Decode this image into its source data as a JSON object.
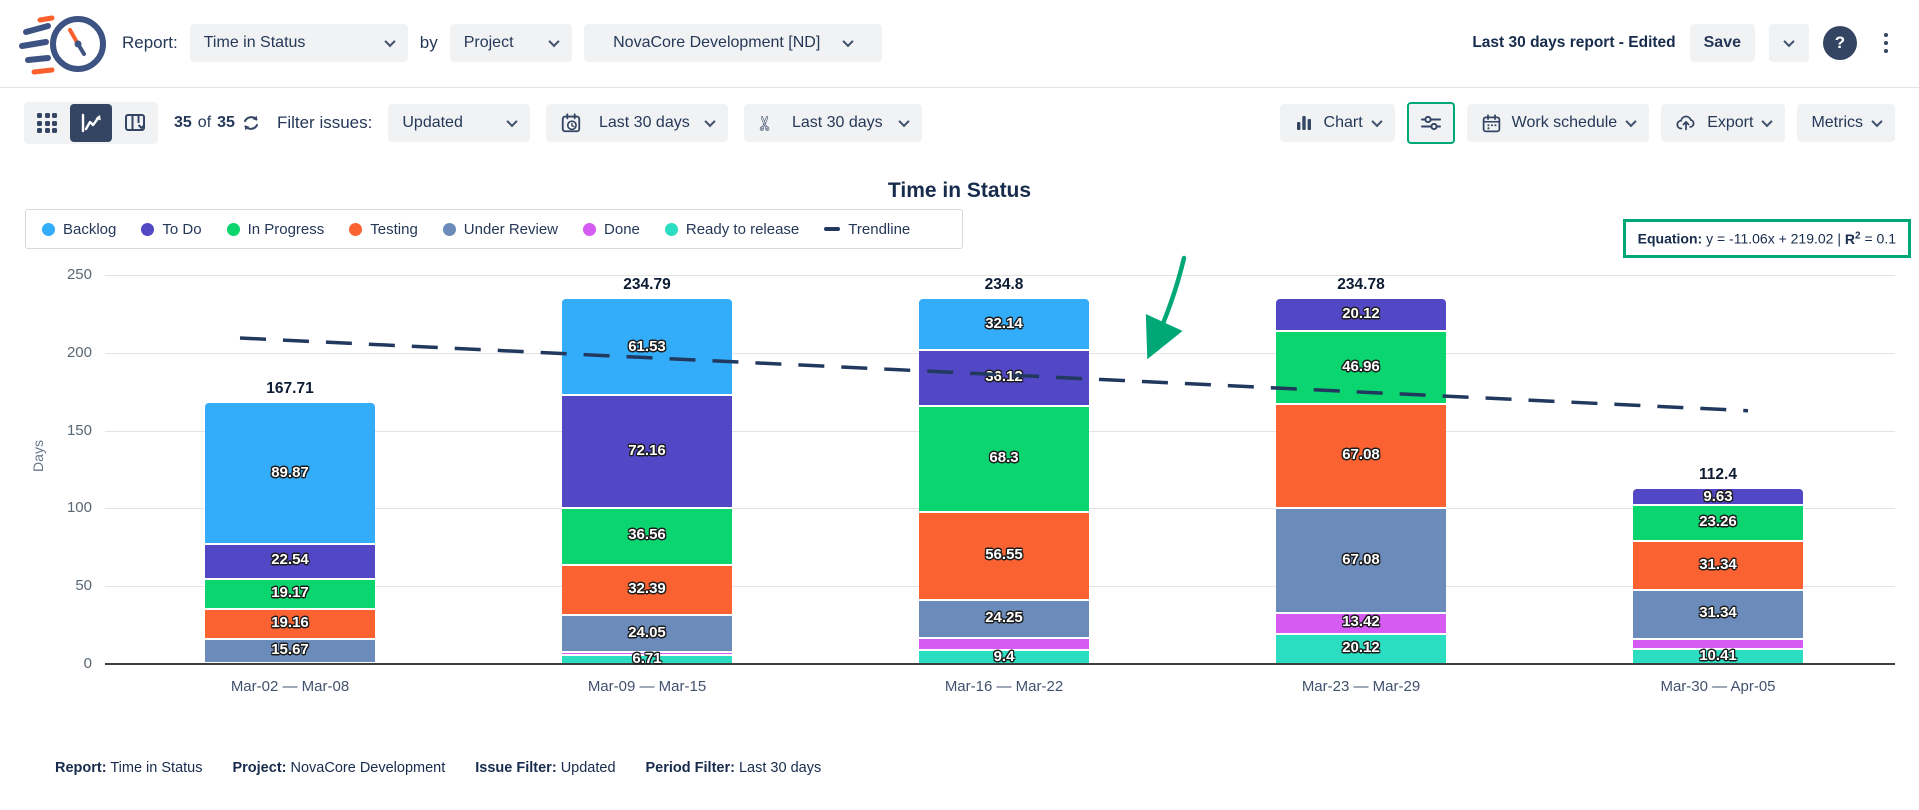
{
  "header": {
    "report_label": "Report:",
    "report_value": "Time in Status",
    "by_label": "by",
    "group_value": "Project",
    "project_value": "NovaCore Development [ND]",
    "report_name": "Last 30 days report - Edited",
    "save_label": "Save",
    "help_glyph": "?"
  },
  "toolbar": {
    "count": "35",
    "count_of": "of",
    "count_total": "35",
    "filter_label": "Filter issues:",
    "issue_filter_value": "Updated",
    "period_filter_value": "Last 30 days",
    "time_limit_value": "Last 30 days",
    "chart_label": "Chart",
    "work_schedule_label": "Work schedule",
    "export_label": "Export",
    "metrics_label": "Metrics"
  },
  "equation": {
    "label": "Equation:",
    "body": " y = -11.06x + 219.02 | ",
    "r_label": "R",
    "r_sup": "2",
    "r_value": " = 0.1"
  },
  "chart_data": {
    "type": "bar",
    "stacked": true,
    "title": "Time in Status",
    "ylabel": "Days",
    "ylim": [
      0,
      250
    ],
    "yticks": [
      0,
      50,
      100,
      150,
      200,
      250
    ],
    "grid": true,
    "legend_position": "top-left",
    "categories": [
      "Mar-02 — Mar-08",
      "Mar-09 — Mar-15",
      "Mar-16 — Mar-22",
      "Mar-23 — Mar-29",
      "Mar-30 — Apr-05"
    ],
    "statuses": [
      {
        "name": "Backlog",
        "color": "#33adf9"
      },
      {
        "name": "To Do",
        "color": "#5247c5"
      },
      {
        "name": "In Progress",
        "color": "#0bd56f"
      },
      {
        "name": "Testing",
        "color": "#fa6232"
      },
      {
        "name": "Under Review",
        "color": "#6b8cba"
      },
      {
        "name": "Done",
        "color": "#d55bf2"
      },
      {
        "name": "Ready to release",
        "color": "#2bdec1"
      }
    ],
    "trendline": {
      "name": "Trendline",
      "slope": -11.06,
      "intercept": 219.02,
      "r2": 0.1,
      "color": "#22395f"
    },
    "bars": [
      {
        "category": "Mar-02 — Mar-08",
        "total": "167.71",
        "segments": [
          {
            "status": "Backlog",
            "value": 89.87,
            "label": "89.87"
          },
          {
            "status": "To Do",
            "value": 22.54,
            "label": "22.54"
          },
          {
            "status": "In Progress",
            "value": 19.17,
            "label": "19.17"
          },
          {
            "status": "Testing",
            "value": 19.16,
            "label": "19.16"
          },
          {
            "status": "Under Review",
            "value": 15.67,
            "label": "15.67"
          },
          {
            "status": "Ready to release",
            "value": 1.3,
            "label": ""
          }
        ]
      },
      {
        "category": "Mar-09 — Mar-15",
        "total": "234.79",
        "segments": [
          {
            "status": "Backlog",
            "value": 61.53,
            "label": "61.53"
          },
          {
            "status": "To Do",
            "value": 72.16,
            "label": "72.16"
          },
          {
            "status": "In Progress",
            "value": 36.56,
            "label": "36.56"
          },
          {
            "status": "Testing",
            "value": 32.39,
            "label": "32.39"
          },
          {
            "status": "Under Review",
            "value": 24.05,
            "label": "24.05"
          },
          {
            "status": "Done",
            "value": 1.39,
            "label": ""
          },
          {
            "status": "Ready to release",
            "value": 6.71,
            "label": "6.71"
          }
        ]
      },
      {
        "category": "Mar-16 — Mar-22",
        "total": "234.8",
        "segments": [
          {
            "status": "Backlog",
            "value": 32.14,
            "label": "32.14"
          },
          {
            "status": "To Do",
            "value": 36.12,
            "label": "36.12"
          },
          {
            "status": "In Progress",
            "value": 68.3,
            "label": "68.3"
          },
          {
            "status": "Testing",
            "value": 56.55,
            "label": "56.55"
          },
          {
            "status": "Under Review",
            "value": 24.25,
            "label": "24.25"
          },
          {
            "status": "Done",
            "value": 8.04,
            "label": ""
          },
          {
            "status": "Ready to release",
            "value": 9.4,
            "label": "9.4"
          }
        ]
      },
      {
        "category": "Mar-23 — Mar-29",
        "total": "234.78",
        "segments": [
          {
            "status": "To Do",
            "value": 20.12,
            "label": "20.12"
          },
          {
            "status": "In Progress",
            "value": 46.96,
            "label": "46.96"
          },
          {
            "status": "Testing",
            "value": 67.08,
            "label": "67.08"
          },
          {
            "status": "Under Review",
            "value": 67.08,
            "label": "67.08"
          },
          {
            "status": "Done",
            "value": 13.42,
            "label": "13.42"
          },
          {
            "status": "Ready to release",
            "value": 20.12,
            "label": "20.12"
          }
        ]
      },
      {
        "category": "Mar-30 — Apr-05",
        "total": "112.4",
        "segments": [
          {
            "status": "To Do",
            "value": 9.63,
            "label": "9.63"
          },
          {
            "status": "In Progress",
            "value": 23.26,
            "label": "23.26"
          },
          {
            "status": "Testing",
            "value": 31.34,
            "label": "31.34"
          },
          {
            "status": "Under Review",
            "value": 31.34,
            "label": "31.34"
          },
          {
            "status": "Done",
            "value": 6.42,
            "label": ""
          },
          {
            "status": "Ready to release",
            "value": 10.41,
            "label": "10.41"
          }
        ]
      }
    ]
  },
  "footer": {
    "items": [
      {
        "label": "Report:",
        "value": "Time in Status"
      },
      {
        "label": "Project:",
        "value": "NovaCore Development"
      },
      {
        "label": "Issue Filter:",
        "value": "Updated"
      },
      {
        "label": "Period Filter:",
        "value": "Last 30 days"
      }
    ]
  }
}
